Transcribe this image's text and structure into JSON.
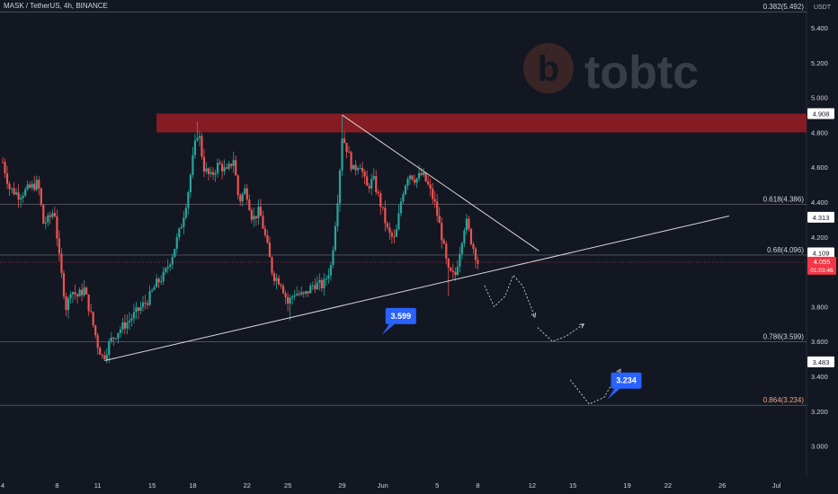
{
  "header": {
    "symbol_text": "MASK / TetherUS, 4h, BINANCE",
    "currency": "USDT"
  },
  "watermark": {
    "text": "tobtc",
    "logo_letter": "b"
  },
  "colors": {
    "background": "#131722",
    "up": "#26a69a",
    "down": "#ef5350",
    "resistance_zone": "#8b1c24",
    "trendline": "#d8d8d8",
    "callout": "#2962ff",
    "current_price_badge": "#f23645"
  },
  "chart_data": {
    "type": "candlestick",
    "title": "MASK / TetherUS, 4h, BINANCE",
    "ylim": [
      2.92,
      5.6
    ],
    "y_ticks": [
      "5.400",
      "5.200",
      "5.000",
      "4.800",
      "4.600",
      "4.400",
      "4.200",
      "3.800",
      "3.600",
      "3.400",
      "3.200",
      "3.000"
    ],
    "x_ticks": [
      "4",
      "8",
      "11",
      "15",
      "18",
      "22",
      "25",
      "29",
      "Jun",
      "5",
      "8",
      "12",
      "15",
      "19",
      "22",
      "26",
      "Jul"
    ],
    "x_tick_positions_days": [
      0,
      4,
      7,
      11,
      14,
      18,
      21,
      25,
      28,
      32,
      35,
      39,
      42,
      46,
      49,
      53,
      57
    ],
    "price_path": [
      [
        0,
        4.63
      ],
      [
        0.5,
        4.48
      ],
      [
        1.2,
        4.44
      ],
      [
        2,
        4.48
      ],
      [
        2.6,
        4.51
      ],
      [
        3,
        4.28
      ],
      [
        3.4,
        4.3
      ],
      [
        3.8,
        4.36
      ],
      [
        4.2,
        4.05
      ],
      [
        4.7,
        3.78
      ],
      [
        5.0,
        3.9
      ],
      [
        5.5,
        3.86
      ],
      [
        6.0,
        3.9
      ],
      [
        6.5,
        3.75
      ],
      [
        7.0,
        3.58
      ],
      [
        7.4,
        3.5
      ],
      [
        7.9,
        3.6
      ],
      [
        8.5,
        3.66
      ],
      [
        9.3,
        3.72
      ],
      [
        10.0,
        3.78
      ],
      [
        10.7,
        3.84
      ],
      [
        11.3,
        3.93
      ],
      [
        11.9,
        3.98
      ],
      [
        12.5,
        4.1
      ],
      [
        13.1,
        4.25
      ],
      [
        13.6,
        4.43
      ],
      [
        14.1,
        4.7
      ],
      [
        14.4,
        4.82
      ],
      [
        14.8,
        4.6
      ],
      [
        15.3,
        4.54
      ],
      [
        15.9,
        4.62
      ],
      [
        16.5,
        4.57
      ],
      [
        17.0,
        4.65
      ],
      [
        17.4,
        4.4
      ],
      [
        17.9,
        4.48
      ],
      [
        18.4,
        4.3
      ],
      [
        18.9,
        4.35
      ],
      [
        19.4,
        4.18
      ],
      [
        19.9,
        3.98
      ],
      [
        20.5,
        3.94
      ],
      [
        21.0,
        3.82
      ],
      [
        21.5,
        3.88
      ],
      [
        22.2,
        3.86
      ],
      [
        22.9,
        3.93
      ],
      [
        23.6,
        3.92
      ],
      [
        24.2,
        4.04
      ],
      [
        24.7,
        4.45
      ],
      [
        25.0,
        4.78
      ],
      [
        25.3,
        4.72
      ],
      [
        25.8,
        4.58
      ],
      [
        26.3,
        4.63
      ],
      [
        26.8,
        4.48
      ],
      [
        27.3,
        4.53
      ],
      [
        27.9,
        4.37
      ],
      [
        28.4,
        4.22
      ],
      [
        28.9,
        4.18
      ],
      [
        29.4,
        4.44
      ],
      [
        29.9,
        4.57
      ],
      [
        30.4,
        4.53
      ],
      [
        30.9,
        4.56
      ],
      [
        31.3,
        4.5
      ],
      [
        31.8,
        4.4
      ],
      [
        32.3,
        4.22
      ],
      [
        32.8,
        4.0
      ],
      [
        33.3,
        3.97
      ],
      [
        33.8,
        4.18
      ],
      [
        34.1,
        4.3
      ],
      [
        34.5,
        4.18
      ],
      [
        35.0,
        4.055
      ]
    ],
    "wick_extremes": [
      {
        "day": 7.5,
        "low": 3.5
      },
      {
        "day": 14.4,
        "high": 4.86
      },
      {
        "day": 21.1,
        "low": 3.72
      },
      {
        "day": 25.0,
        "high": 4.9
      },
      {
        "day": 32.9,
        "low": 3.86
      }
    ],
    "resistance_zone": {
      "low": 4.8,
      "high": 4.908,
      "start_day": 11,
      "end_day": 57
    },
    "fib_levels": [
      {
        "label": "0.382(5.492)",
        "value": 5.492
      },
      {
        "label": "0.618(4.386)",
        "value": 4.386
      },
      {
        "label": "0.68(4.096)",
        "value": 4.096
      },
      {
        "label": "0.786(3.599)",
        "value": 3.599
      },
      {
        "label": "0.864(3.234)",
        "value": 3.234
      }
    ],
    "trendlines": [
      {
        "name": "ascending support",
        "from": [
          7.5,
          3.49
        ],
        "to": [
          53.5,
          4.32
        ]
      },
      {
        "name": "descending resistance",
        "from": [
          25.0,
          4.9
        ],
        "to": [
          39.5,
          4.12
        ]
      }
    ],
    "projection_path": [
      [
        35.5,
        3.92
      ],
      [
        36.2,
        3.8
      ],
      [
        37.0,
        3.86
      ],
      [
        37.6,
        3.98
      ],
      [
        38.3,
        3.92
      ],
      [
        39.2,
        3.74
      ]
    ],
    "projection_path_2": [
      [
        39.4,
        3.68
      ],
      [
        40.5,
        3.6
      ],
      [
        41.5,
        3.63
      ],
      [
        42.8,
        3.7
      ]
    ],
    "projection_path_3": [
      [
        41.8,
        3.38
      ],
      [
        43.2,
        3.24
      ],
      [
        44.3,
        3.28
      ],
      [
        45.5,
        3.44
      ]
    ],
    "price_badges": [
      {
        "label": "4.908",
        "value": 4.908,
        "kind": "normal"
      },
      {
        "label": "4.313",
        "value": 4.313,
        "kind": "normal"
      },
      {
        "label": "4.109",
        "value": 4.109,
        "kind": "normal"
      },
      {
        "label": "3.483",
        "value": 3.483,
        "kind": "normal"
      }
    ],
    "current_price": {
      "label": "4.055",
      "countdown": "01:03:46",
      "value": 4.055
    },
    "callouts": [
      {
        "label": "3.599",
        "day": 28.2,
        "value": 3.72
      },
      {
        "label": "3.234",
        "day": 44.8,
        "value": 3.35
      }
    ]
  }
}
